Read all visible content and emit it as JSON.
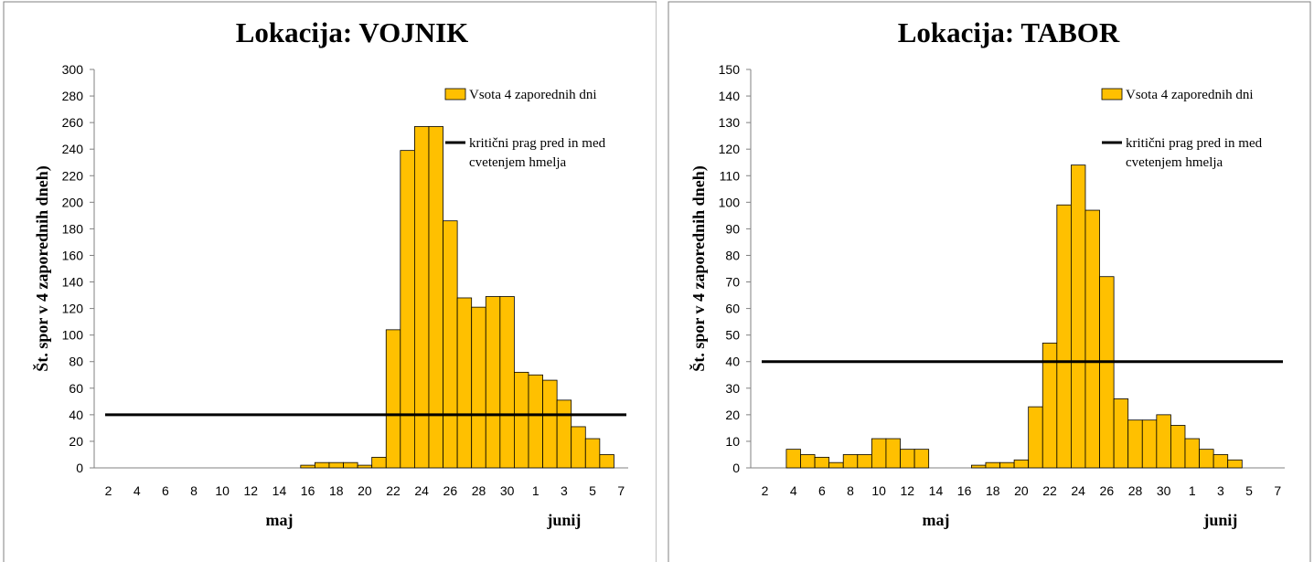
{
  "colors": {
    "bar_fill": "#FFC000",
    "bar_stroke": "#000000",
    "threshold_line": "#000000"
  },
  "chart_data": [
    {
      "type": "bar",
      "title": "Lokacija: VOJNIK",
      "ylabel": "Št. spor v 4 zaporednih dneh)",
      "ylim": [
        0,
        300
      ],
      "yticks": [
        0,
        20,
        40,
        60,
        80,
        100,
        120,
        140,
        160,
        180,
        200,
        220,
        240,
        260,
        280,
        300
      ],
      "xtick_labels": [
        "2",
        "4",
        "6",
        "8",
        "10",
        "12",
        "14",
        "16",
        "18",
        "20",
        "22",
        "24",
        "26",
        "28",
        "30",
        "1",
        "3",
        "5",
        "7"
      ],
      "month_labels": [
        "maj",
        "junij"
      ],
      "legend": [
        "Vsota 4 zaporednih dni",
        "kritični prag pred in med cvetenjem hmelja"
      ],
      "legend_position": "top-right",
      "categories": [
        "2",
        "3",
        "4",
        "5",
        "6",
        "7",
        "8",
        "9",
        "10",
        "11",
        "12",
        "13",
        "14",
        "15",
        "16",
        "17",
        "18",
        "19",
        "20",
        "21",
        "22",
        "23",
        "24",
        "25",
        "26",
        "27",
        "28",
        "29",
        "30",
        "31",
        "1",
        "2",
        "3",
        "4",
        "5",
        "6",
        "7"
      ],
      "series": [
        {
          "name": "Vsota 4 zaporednih dni",
          "type": "bar",
          "values": [
            0,
            0,
            0,
            0,
            0,
            0,
            0,
            0,
            0,
            0,
            0,
            0,
            0,
            0,
            2,
            4,
            4,
            4,
            2,
            8,
            104,
            239,
            257,
            257,
            186,
            128,
            121,
            129,
            129,
            72,
            70,
            66,
            51,
            31,
            22,
            10,
            0
          ]
        },
        {
          "name": "kritični prag pred in med cvetenjem hmelja",
          "type": "line",
          "value": 40
        }
      ]
    },
    {
      "type": "bar",
      "title": "Lokacija: TABOR",
      "ylabel": "Št. spor v 4 zaporednih dneh)",
      "ylim": [
        0,
        150
      ],
      "yticks": [
        0,
        10,
        20,
        30,
        40,
        50,
        60,
        70,
        80,
        90,
        100,
        110,
        120,
        130,
        140,
        150
      ],
      "xtick_labels": [
        "2",
        "4",
        "6",
        "8",
        "10",
        "12",
        "14",
        "16",
        "18",
        "20",
        "22",
        "24",
        "26",
        "28",
        "30",
        "1",
        "3",
        "5",
        "7"
      ],
      "month_labels": [
        "maj",
        "junij"
      ],
      "legend": [
        "Vsota 4 zaporednih dni",
        "kritični prag pred in med cvetenjem hmelja"
      ],
      "legend_position": "top-right",
      "categories": [
        "2",
        "3",
        "4",
        "5",
        "6",
        "7",
        "8",
        "9",
        "10",
        "11",
        "12",
        "13",
        "14",
        "15",
        "16",
        "17",
        "18",
        "19",
        "20",
        "21",
        "22",
        "23",
        "24",
        "25",
        "26",
        "27",
        "28",
        "29",
        "30",
        "31",
        "1",
        "2",
        "3",
        "4",
        "5",
        "6",
        "7"
      ],
      "series": [
        {
          "name": "Vsota 4 zaporednih dni",
          "type": "bar",
          "values": [
            0,
            0,
            7,
            5,
            4,
            2,
            5,
            5,
            11,
            11,
            7,
            7,
            0,
            0,
            0,
            1,
            2,
            2,
            3,
            23,
            47,
            99,
            114,
            97,
            72,
            26,
            18,
            18,
            20,
            16,
            11,
            7,
            5,
            3,
            0,
            0,
            0
          ]
        },
        {
          "name": "kritični prag pred in med cvetenjem hmelja",
          "type": "line",
          "value": 40
        }
      ]
    }
  ]
}
